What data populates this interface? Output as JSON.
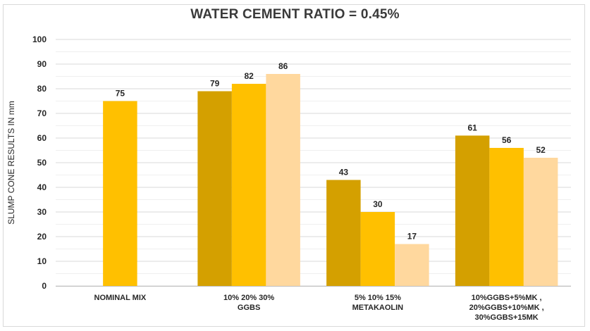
{
  "chart_data": {
    "type": "bar",
    "title": "WATER CEMENT RATIO = 0.45%",
    "xlabel": "",
    "ylabel": "SLUMP CONE RESULTS IN mm",
    "ylim": [
      0,
      100
    ],
    "yticks": [
      0,
      10,
      20,
      30,
      40,
      50,
      60,
      70,
      80,
      90,
      100
    ],
    "grid": true,
    "categories": [
      [
        "NOMINAL MIX"
      ],
      [
        "10% 20% 30%",
        "GGBS"
      ],
      [
        "5% 10% 15%",
        "METAKAOLIN"
      ],
      [
        "10%GGBS+5%MK ,",
        "20%GGBS+10%MK ,",
        "30%GGBS+15MK"
      ]
    ],
    "groups": [
      {
        "bars": [
          {
            "value": 75,
            "color": "#FFC000"
          }
        ]
      },
      {
        "bars": [
          {
            "value": 79,
            "color": "#D4A000"
          },
          {
            "value": 82,
            "color": "#FFC000"
          },
          {
            "value": 86,
            "color": "#FFD89E"
          }
        ]
      },
      {
        "bars": [
          {
            "value": 43,
            "color": "#D4A000"
          },
          {
            "value": 30,
            "color": "#FFC000"
          },
          {
            "value": 17,
            "color": "#FFD89E"
          }
        ]
      },
      {
        "bars": [
          {
            "value": 61,
            "color": "#D4A000"
          },
          {
            "value": 56,
            "color": "#FFC000"
          },
          {
            "value": 52,
            "color": "#FFD89E"
          }
        ]
      }
    ]
  }
}
